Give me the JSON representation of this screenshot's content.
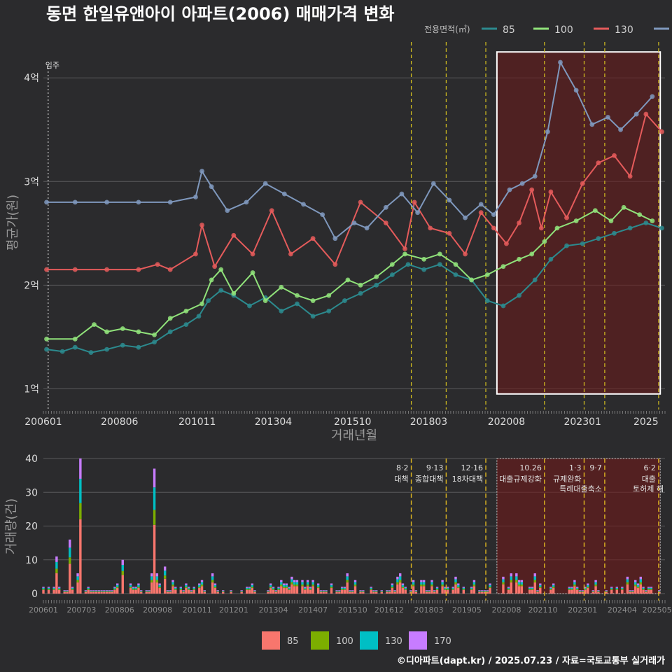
{
  "title": "동면 한일유앤아이 아파트(2006) 매매가격 변화",
  "footer": "©디아파트(dapt.kr) / 2025.07.23 / 자료=국토교통부 실거래가",
  "colors": {
    "s85": "#2c8a8e",
    "s100": "#90e27a",
    "s130": "#e45b5b",
    "s170": "#7f98bd",
    "bar85": "#f8766d",
    "bar100": "#7cae00",
    "bar130": "#00bfc4",
    "bar170": "#c77cff"
  },
  "chart_data": [
    {
      "type": "line",
      "title": "동면 한일유앤아이 아파트(2006) 매매가격 변화",
      "xlabel": "거래년월",
      "ylabel": "평균가(원)",
      "legend_title": "전용면적(㎡)",
      "legend_position": "top-right",
      "x_ticks": [
        "200601",
        "200806",
        "201011",
        "201304",
        "201510",
        "201803",
        "202008",
        "202301",
        "2025"
      ],
      "y_ticks": [
        {
          "value": 1,
          "label": "1억"
        },
        {
          "value": 2,
          "label": "2억"
        },
        {
          "value": 3,
          "label": "3억"
        },
        {
          "value": 4,
          "label": "4억"
        }
      ],
      "ylim": [
        0.8,
        4.4
      ],
      "grid": true,
      "annotation_start_label": "입주",
      "series": [
        {
          "name": "85",
          "color_key": "s85",
          "x": [
            2006.1,
            2006.6,
            2007.0,
            2007.5,
            2008.0,
            2008.5,
            2009.0,
            2009.5,
            2010.0,
            2010.5,
            2010.9,
            2011.2,
            2011.6,
            2012.0,
            2012.5,
            2013.0,
            2013.5,
            2014.0,
            2014.5,
            2015.0,
            2015.5,
            2016.0,
            2016.5,
            2017.0,
            2017.5,
            2018.0,
            2018.5,
            2019.0,
            2019.5,
            2020.0,
            2020.5,
            2021.0,
            2021.5,
            2022.0,
            2022.5,
            2023.0,
            2023.5,
            2024.0,
            2024.5,
            2025.0,
            2025.5
          ],
          "y": [
            1.38,
            1.36,
            1.4,
            1.35,
            1.38,
            1.42,
            1.4,
            1.45,
            1.55,
            1.62,
            1.7,
            1.85,
            1.95,
            1.9,
            1.8,
            1.88,
            1.75,
            1.82,
            1.7,
            1.75,
            1.85,
            1.92,
            2.0,
            2.1,
            2.2,
            2.15,
            2.2,
            2.1,
            2.05,
            1.85,
            1.8,
            1.9,
            2.05,
            2.25,
            2.38,
            2.4,
            2.45,
            2.5,
            2.55,
            2.6,
            2.55
          ]
        },
        {
          "name": "100",
          "color_key": "s100",
          "x": [
            2006.1,
            2007.0,
            2007.6,
            2008.0,
            2008.5,
            2009.0,
            2009.5,
            2010.0,
            2010.5,
            2011.0,
            2011.3,
            2011.6,
            2012.0,
            2012.6,
            2013.0,
            2013.5,
            2014.0,
            2014.5,
            2015.0,
            2015.6,
            2016.0,
            2016.5,
            2017.0,
            2017.4,
            2018.0,
            2018.5,
            2019.0,
            2019.5,
            2020.0,
            2020.5,
            2021.0,
            2021.4,
            2021.8,
            2022.2,
            2022.8,
            2023.4,
            2023.9,
            2024.3,
            2024.8,
            2025.2
          ],
          "y": [
            1.48,
            1.48,
            1.62,
            1.55,
            1.58,
            1.55,
            1.52,
            1.68,
            1.75,
            1.82,
            2.05,
            2.15,
            1.92,
            2.12,
            1.85,
            1.98,
            1.9,
            1.85,
            1.9,
            2.05,
            2.0,
            2.08,
            2.2,
            2.3,
            2.25,
            2.3,
            2.2,
            2.05,
            2.1,
            2.18,
            2.25,
            2.3,
            2.42,
            2.55,
            2.62,
            2.72,
            2.62,
            2.75,
            2.68,
            2.62
          ]
        },
        {
          "name": "130",
          "color_key": "s130",
          "x": [
            2006.1,
            2007.0,
            2008.0,
            2009.0,
            2009.6,
            2010.0,
            2010.8,
            2011.0,
            2011.4,
            2012.0,
            2012.6,
            2013.2,
            2013.8,
            2014.5,
            2015.2,
            2016.0,
            2016.8,
            2017.4,
            2017.7,
            2018.2,
            2018.8,
            2019.3,
            2019.8,
            2020.2,
            2020.6,
            2021.0,
            2021.4,
            2021.7,
            2022.0,
            2022.5,
            2023.0,
            2023.5,
            2024.0,
            2024.5,
            2025.0,
            2025.5
          ],
          "y": [
            2.15,
            2.15,
            2.15,
            2.15,
            2.2,
            2.15,
            2.3,
            2.58,
            2.18,
            2.48,
            2.3,
            2.72,
            2.3,
            2.45,
            2.2,
            2.8,
            2.6,
            2.35,
            2.8,
            2.55,
            2.5,
            2.3,
            2.7,
            2.55,
            2.4,
            2.6,
            2.92,
            2.55,
            2.9,
            2.65,
            2.98,
            3.18,
            3.25,
            3.05,
            3.65,
            3.48
          ]
        },
        {
          "name": "170",
          "color_key": "s170",
          "x": [
            2006.1,
            2007.0,
            2008.0,
            2009.0,
            2010.0,
            2010.8,
            2011.0,
            2011.3,
            2011.8,
            2012.4,
            2013.0,
            2013.6,
            2014.2,
            2014.8,
            2015.2,
            2015.8,
            2016.2,
            2016.8,
            2017.3,
            2017.8,
            2018.3,
            2018.8,
            2019.3,
            2019.8,
            2020.2,
            2020.7,
            2021.1,
            2021.5,
            2021.9,
            2022.3,
            2022.8,
            2023.3,
            2023.8,
            2024.2,
            2024.7,
            2025.2
          ],
          "y": [
            2.8,
            2.8,
            2.8,
            2.8,
            2.8,
            2.85,
            3.1,
            2.95,
            2.72,
            2.8,
            2.98,
            2.88,
            2.78,
            2.68,
            2.45,
            2.6,
            2.55,
            2.75,
            2.88,
            2.7,
            2.98,
            2.82,
            2.65,
            2.78,
            2.68,
            2.92,
            2.98,
            3.05,
            3.48,
            4.15,
            3.88,
            3.55,
            3.62,
            3.5,
            3.65,
            3.82
          ]
        }
      ]
    },
    {
      "type": "bar",
      "ylabel": "거래량(건)",
      "x_ticks": [
        "200601",
        "200703",
        "200806",
        "200908",
        "201011",
        "201201",
        "201304",
        "201407",
        "201510",
        "201612",
        "201803",
        "201905",
        "202008",
        "202110",
        "202301",
        "202404",
        "202505"
      ],
      "y_ticks": [
        0,
        10,
        20,
        30,
        40
      ],
      "ylim": [
        0,
        40
      ],
      "legend_position": "bottom",
      "legend_entries": [
        {
          "name": "85",
          "color_key": "bar85"
        },
        {
          "name": "100",
          "color_key": "bar100"
        },
        {
          "name": "130",
          "color_key": "bar130"
        },
        {
          "name": "170",
          "color_key": "bar170"
        }
      ],
      "events": [
        {
          "x": 2017.6,
          "date": "8·2",
          "text": "대책"
        },
        {
          "x": 2018.7,
          "date": "9·13",
          "text": "종합대책"
        },
        {
          "x": 2019.95,
          "date": "12·16",
          "text": "18차대책"
        },
        {
          "x": 2021.8,
          "date": "10.26",
          "text": "대출규제강화"
        },
        {
          "x": 2023.05,
          "date": "1·3",
          "text": "규제완화"
        },
        {
          "x": 2023.7,
          "date": "9·7",
          "text": "특례대출축소"
        },
        {
          "x": 2025.4,
          "date": "6·2",
          "text": "대출"
        }
      ],
      "event_extra_label": "토허제 해",
      "volume_samples": [
        {
          "x": 2006.4,
          "v": 11
        },
        {
          "x": 2006.8,
          "v": 16
        },
        {
          "x": 2007.2,
          "v": 40
        },
        {
          "x": 2008.5,
          "v": 10
        },
        {
          "x": 2009.5,
          "v": 37
        },
        {
          "x": 2009.8,
          "v": 8
        },
        {
          "x": 2011.3,
          "v": 6
        },
        {
          "x": 2015.6,
          "v": 6
        },
        {
          "x": 2017.2,
          "v": 5
        },
        {
          "x": 2020.5,
          "v": 5
        },
        {
          "x": 2021.5,
          "v": 6
        },
        {
          "x": 2024.8,
          "v": 5
        }
      ]
    }
  ]
}
